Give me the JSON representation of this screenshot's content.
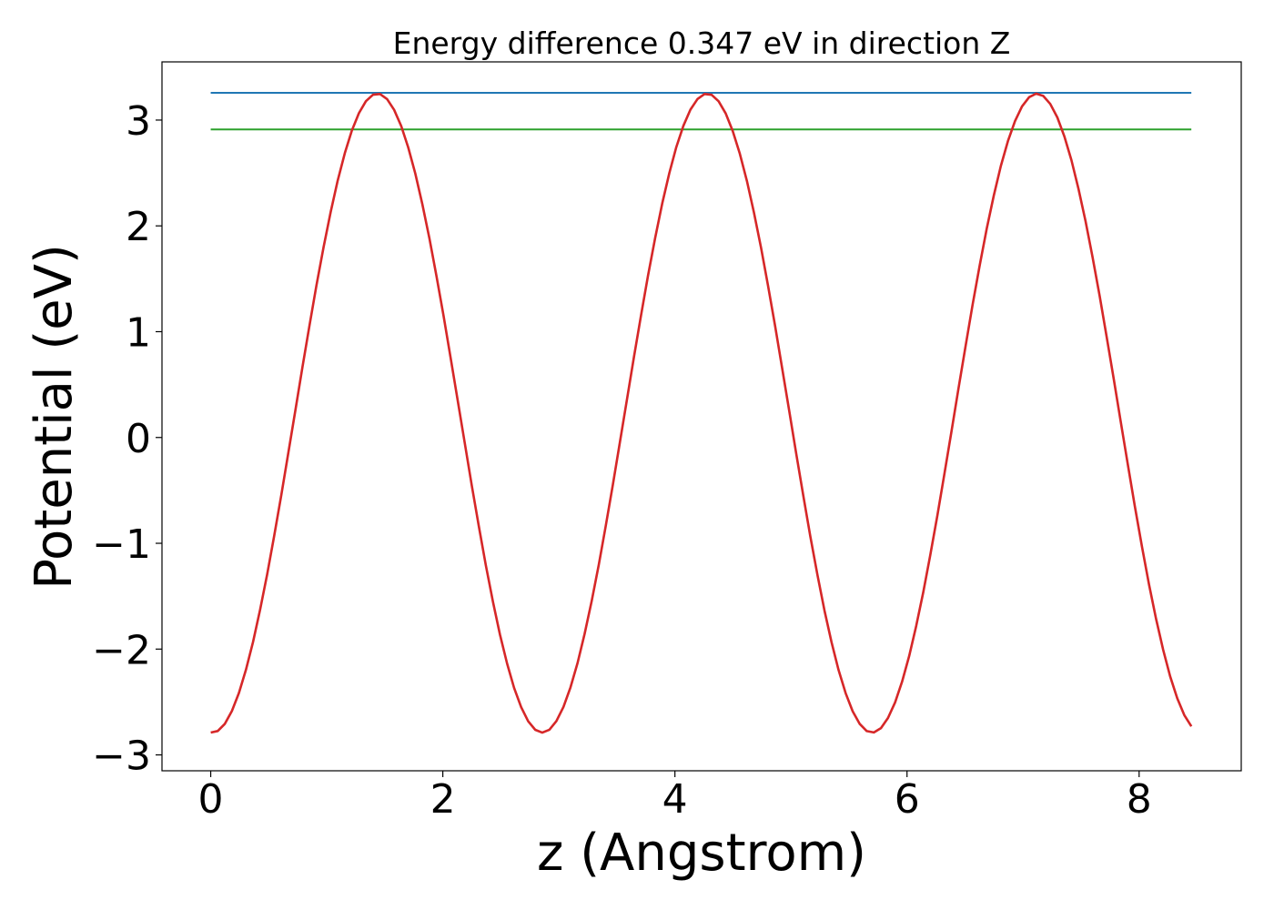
{
  "chart_data": {
    "type": "line",
    "title": "Energy difference 0.347 eV in direction Z",
    "xlabel": "z (Angstrom)",
    "ylabel": "Potential (eV)",
    "xlim": [
      -0.42,
      8.88
    ],
    "ylim": [
      -3.15,
      3.55
    ],
    "xticks": [
      0,
      2,
      4,
      6,
      8
    ],
    "yticks": [
      -3,
      -2,
      -1,
      0,
      1,
      2,
      3
    ],
    "ytick_labels": [
      "−3",
      "−2",
      "−1",
      "0",
      "1",
      "2",
      "3"
    ],
    "grid": false,
    "legend": "none",
    "potential": {
      "color": "#d62728",
      "x_range": [
        0.0,
        8.45
      ],
      "num_points": 140,
      "period": 2.8417,
      "mean": 0.23,
      "amplitude": 3.02,
      "peak_values": [
        3.26,
        3.22,
        3.26
      ],
      "trough_values": [
        -2.82,
        -2.78,
        -2.78,
        -2.8
      ]
    },
    "series": [
      {
        "type": "hline",
        "y": 3.258,
        "x_range": [
          0.0,
          8.45
        ],
        "color": "#1f77b4"
      },
      {
        "type": "hline",
        "y": 2.911,
        "x_range": [
          0.0,
          8.45
        ],
        "color": "#2ca02c"
      }
    ]
  }
}
